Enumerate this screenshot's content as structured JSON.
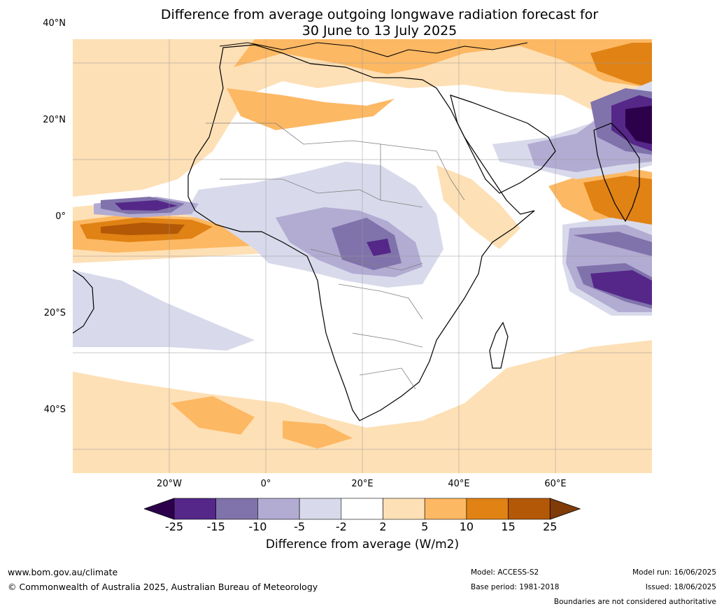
{
  "title_line1": "Difference from average outgoing longwave radiation forecast for",
  "title_line2": "30 June to 13 July 2025",
  "lat_labels": [
    "40°N",
    "20°N",
    "0°",
    "20°S",
    "40°S"
  ],
  "lon_labels": [
    "20°W",
    "0°",
    "20°E",
    "40°E",
    "60°E"
  ],
  "colorbar": {
    "ticks": [
      "-25",
      "-15",
      "-10",
      "-5",
      "-2",
      "2",
      "5",
      "10",
      "15",
      "25"
    ],
    "colors": [
      "#2d004b",
      "#542788",
      "#8073ac",
      "#b2abd2",
      "#d8daeb",
      "#ffffff",
      "#fee0b6",
      "#fdb863",
      "#e08214",
      "#b35806",
      "#7f3b08"
    ],
    "label": "Difference from average (W/m2)"
  },
  "footer": {
    "website": "www.bom.gov.au/climate",
    "copyright": "© Commonwealth of Australia 2025, Australian Bureau of Meteorology",
    "model": "Model: ACCESS-S2",
    "base_period": "Base period: 1981-2018",
    "model_run": "Model run: 16/06/2025",
    "issued": "Issued: 18/06/2025",
    "disclaimer": "Boundaries are not considered authoritative"
  }
}
